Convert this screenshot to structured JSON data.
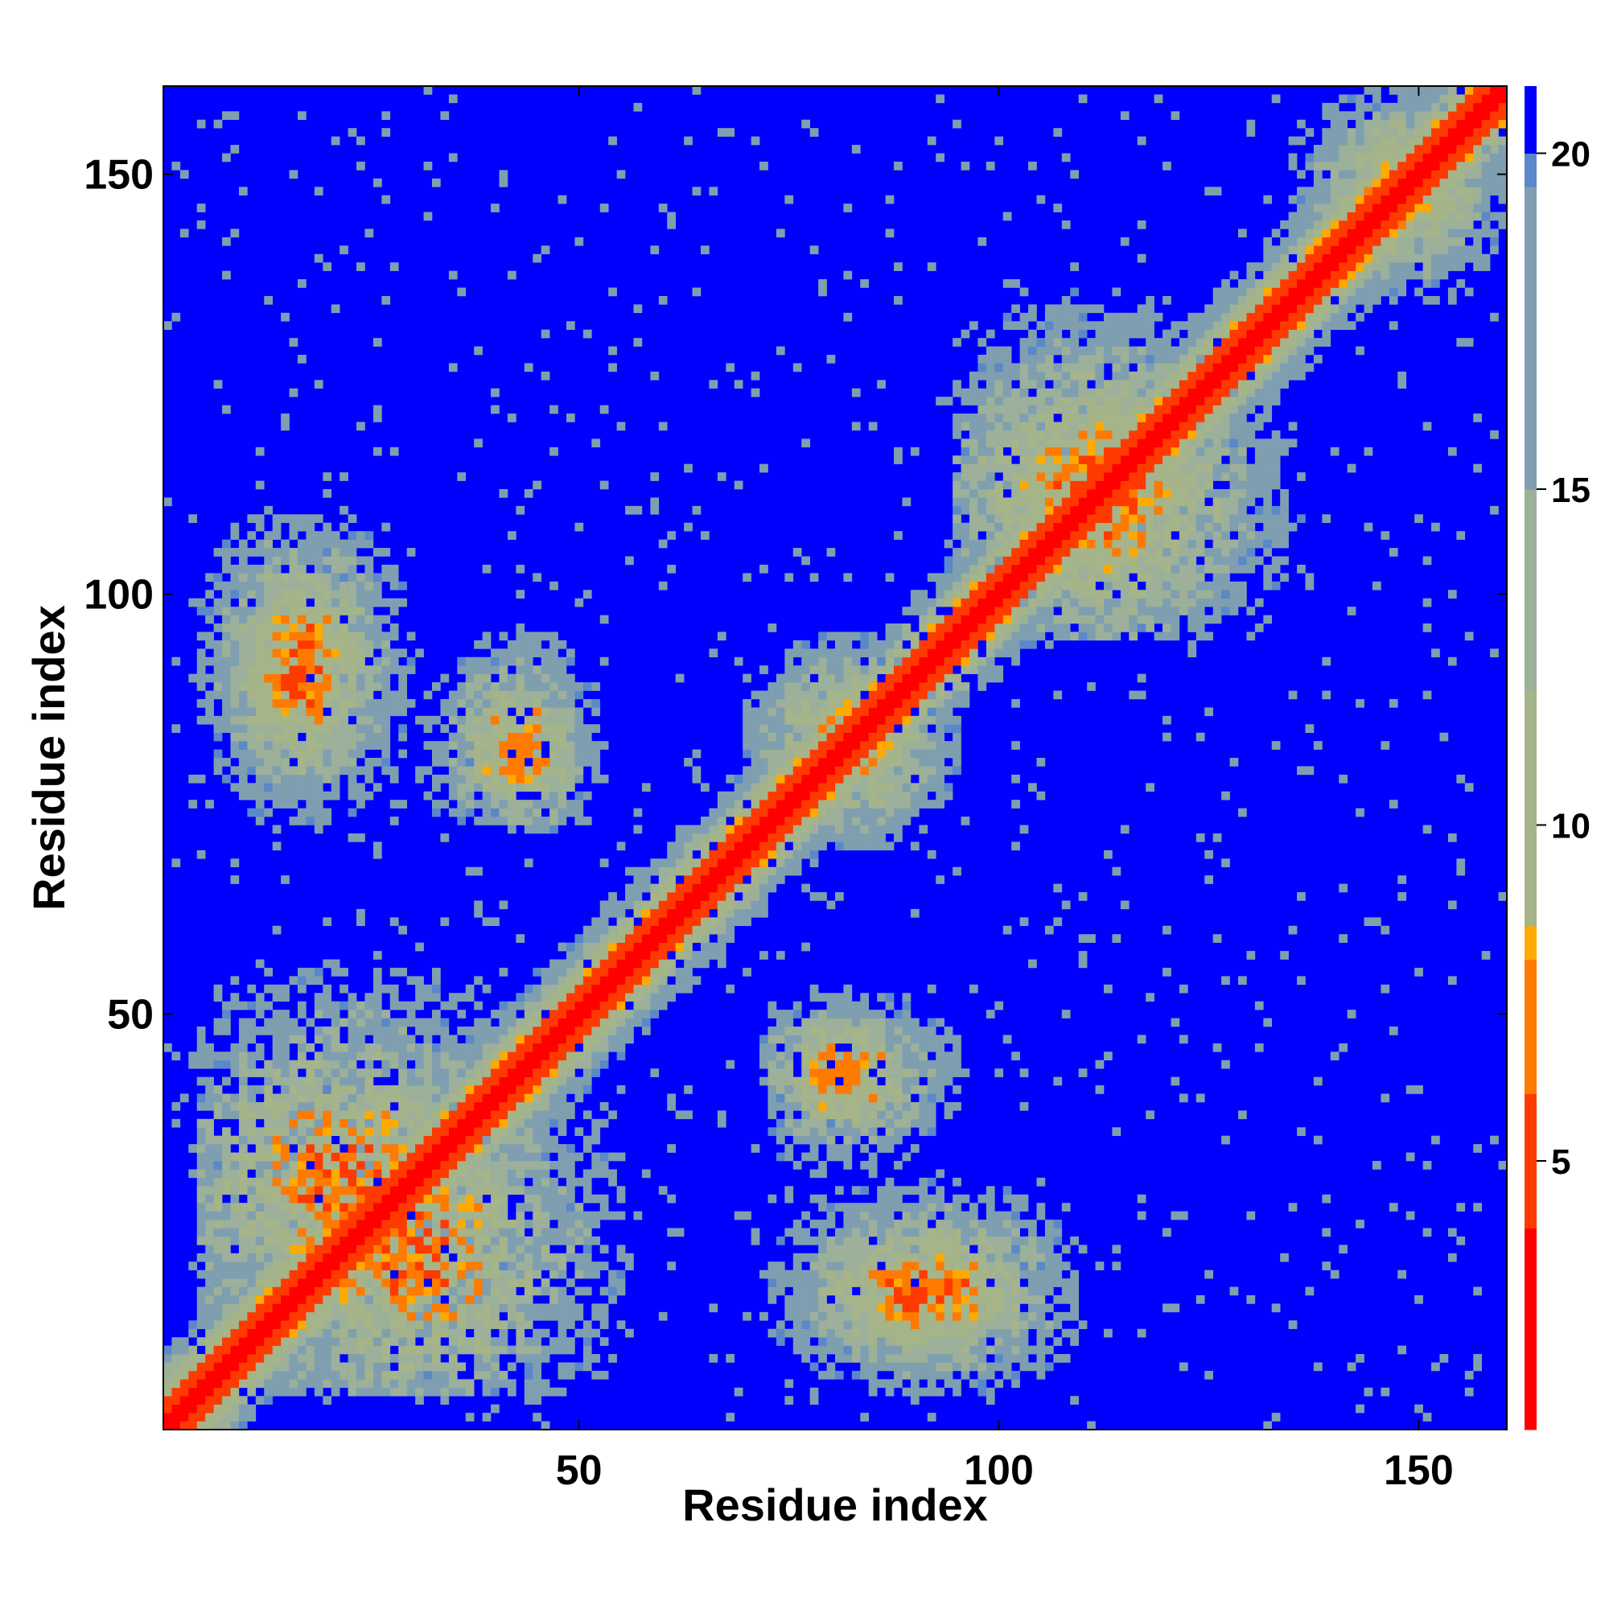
{
  "chart_data": {
    "type": "heatmap",
    "title": "",
    "xlabel": "Residue index",
    "ylabel": "Residue index",
    "xlim": [
      1,
      160
    ],
    "ylim": [
      1,
      160
    ],
    "xticks": [
      50,
      100,
      150
    ],
    "yticks": [
      50,
      100,
      150
    ],
    "x_tick_labels": [
      "50",
      "100",
      "150"
    ],
    "y_tick_labels": [
      "50",
      "100",
      "150"
    ],
    "grid": false,
    "description_of_values": "symmetric residue-residue distance map; low values near diagonal, capped at ~21",
    "colorbar": {
      "range": [
        1,
        21
      ],
      "ticks": [
        5,
        10,
        15,
        20
      ],
      "tick_labels": [
        "5",
        "10",
        "15",
        "20"
      ],
      "position": "right",
      "stops": [
        {
          "value": 1,
          "color": "#ff0000"
        },
        {
          "value": 4,
          "color": "#ff3a00"
        },
        {
          "value": 6,
          "color": "#ff7a00"
        },
        {
          "value": 8,
          "color": "#ffaa00"
        },
        {
          "value": 8.5,
          "color": "#a6b48a"
        },
        {
          "value": 12,
          "color": "#9cb09a"
        },
        {
          "value": 15,
          "color": "#7f9fb0"
        },
        {
          "value": 19.5,
          "color": "#5a88c8"
        },
        {
          "value": 20,
          "color": "#0000ff"
        },
        {
          "value": 21,
          "color": "#0000ff"
        }
      ]
    },
    "contact_regions": [
      {
        "x": [
          1,
          160
        ],
        "y": [
          1,
          160
        ],
        "kind": "diagonal",
        "min_value": 1
      },
      {
        "x": [
          8,
          30
        ],
        "y": [
          70,
          105
        ],
        "center": [
          17,
          90
        ],
        "min_value": 5
      },
      {
        "x": [
          35,
          52
        ],
        "y": [
          72,
          98
        ],
        "center": [
          44,
          82
        ],
        "min_value": 6
      },
      {
        "x": [
          5,
          55
        ],
        "y": [
          5,
          55
        ],
        "center": [
          22,
          30
        ],
        "min_value": 5
      },
      {
        "x": [
          73,
          100
        ],
        "y": [
          30,
          52
        ],
        "center": [
          82,
          42
        ],
        "min_value": 6
      },
      {
        "x": [
          73,
          110
        ],
        "y": [
          5,
          30
        ],
        "center": [
          92,
          17
        ],
        "min_value": 5
      },
      {
        "x": [
          70,
          95
        ],
        "y": [
          70,
          95
        ],
        "center": [
          82,
          82
        ],
        "min_value": 5
      },
      {
        "x": [
          95,
          140
        ],
        "y": [
          95,
          135
        ],
        "center": [
          112,
          112
        ],
        "min_value": 5
      },
      {
        "x": [
          135,
          160
        ],
        "y": [
          135,
          160
        ],
        "center": [
          148,
          148
        ],
        "min_value": 5
      }
    ]
  }
}
